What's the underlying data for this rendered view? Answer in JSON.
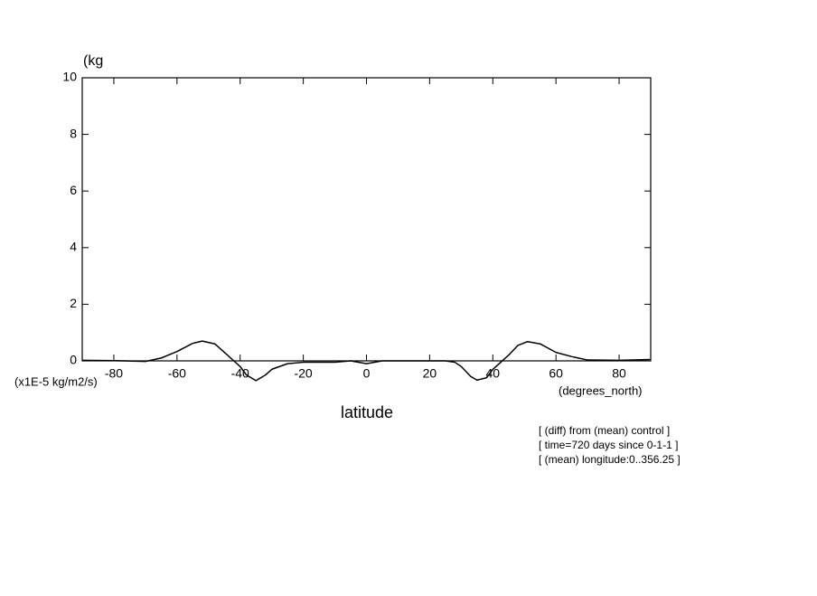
{
  "chart_data": {
    "type": "line",
    "y_label": "(kg",
    "y_units": "(x1E-5 kg/m2/s)",
    "x_units": "(degrees_north)",
    "x_label": "latitude",
    "annotations": [
      "[ (diff) from (mean) control ]",
      "[ time=720 days since 0-1-1 ]",
      "[ (mean) longitude:0..356.25 ]"
    ],
    "x": [
      -90,
      -80,
      -70,
      -65,
      -60,
      -55,
      -52,
      -48,
      -45,
      -42,
      -40,
      -38,
      -35,
      -32,
      -30,
      -25,
      -20,
      -10,
      -5,
      0,
      5,
      10,
      20,
      25,
      28,
      30,
      33,
      35,
      38,
      40,
      45,
      48,
      51,
      55,
      60,
      65,
      70,
      80,
      90
    ],
    "series": [
      {
        "name": "diff",
        "color": "#000000",
        "values": [
          0.02,
          0.01,
          -0.02,
          0.1,
          0.33,
          0.62,
          0.7,
          0.6,
          0.3,
          0.0,
          -0.2,
          -0.5,
          -0.7,
          -0.5,
          -0.3,
          -0.1,
          -0.05,
          -0.05,
          0.0,
          -0.1,
          0.0,
          0.0,
          0.0,
          0.0,
          -0.05,
          -0.2,
          -0.55,
          -0.68,
          -0.6,
          -0.3,
          0.2,
          0.55,
          0.68,
          0.6,
          0.3,
          0.15,
          0.03,
          0.02,
          0.05
        ]
      }
    ],
    "xlim": [
      -90,
      90
    ],
    "ylim": [
      0,
      10
    ],
    "xticks": [
      -80,
      -60,
      -40,
      -20,
      0,
      20,
      40,
      60,
      80
    ],
    "yticks": [
      0,
      2,
      4,
      6,
      8,
      10
    ],
    "grid": false
  }
}
